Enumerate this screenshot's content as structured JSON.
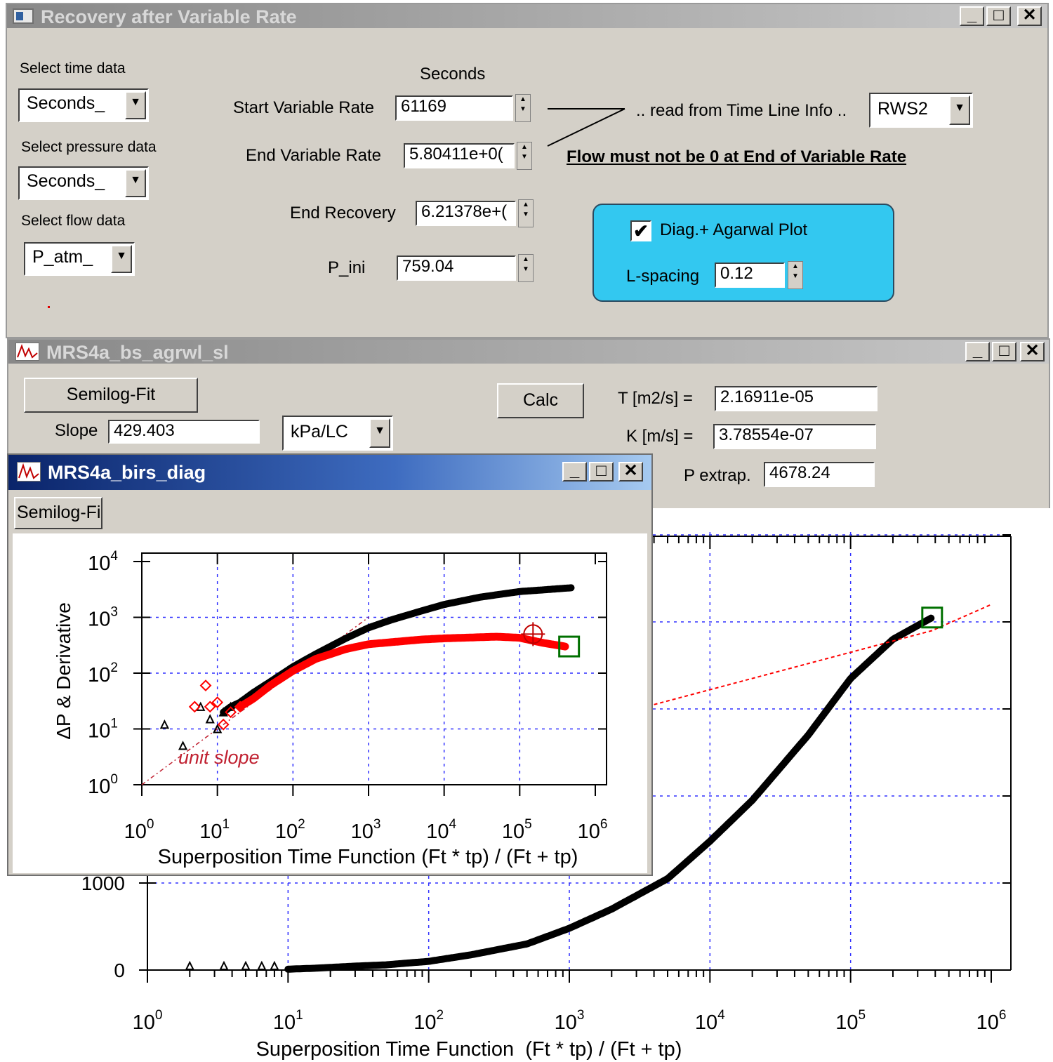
{
  "recovery_window": {
    "title": "Recovery after Variable Rate",
    "select_time_label": "Select time data",
    "select_time_value": "Seconds_",
    "select_pressure_label": "Select pressure data",
    "select_pressure_value": "Seconds_",
    "select_flow_label": "Select flow data",
    "select_flow_value": "P_atm_",
    "seconds_header": "Seconds",
    "start_variable_rate_label": "Start Variable Rate",
    "start_variable_rate_value": "61169",
    "end_variable_rate_label": "End Variable Rate",
    "end_variable_rate_value": "5.80411e+0(",
    "end_recovery_label": "End Recovery",
    "end_recovery_value": "6.21378e+(",
    "p_ini_label": "P_ini",
    "p_ini_value": "759.04",
    "read_from_label": ".. read from Time Line Info ..",
    "read_from_value": "RWS2",
    "flow_warning": "Flow must not be 0 at End of Variable Rate",
    "diag_checkbox_label": "Diag.+ Agarwal Plot",
    "diag_checked": true,
    "l_spacing_label": "L-spacing",
    "l_spacing_value": "0.12",
    "panel_color": "#33c8f0"
  },
  "agarwal_window": {
    "title": "MRS4a_bs_agrwl_sl",
    "semilog_fit_button": "Semilog-Fit",
    "slope_label": "Slope",
    "slope_value": "429.403",
    "units_value": "kPa/LC",
    "calc_button": "Calc",
    "t_label": "T [m2/s] =",
    "t_value": "2.16911e-05",
    "k_label": "K [m/s] =",
    "k_value": "3.78554e-07",
    "p_extrap_label": "P extrap.",
    "p_extrap_value": "4678.24"
  },
  "diag_window": {
    "title": "MRS4a_birs_diag",
    "semilog_fit_button": "Semilog-Fi"
  },
  "chart_data": [
    {
      "type": "scatter",
      "title": "",
      "xlabel": "Superposition Time Function  (Ft * tp) / (Ft + tp)",
      "ylabel": "",
      "xscale": "log",
      "xlim": [
        1,
        1000000
      ],
      "x_tick_labels": [
        "10",
        "10",
        "10",
        "10",
        "10",
        "10",
        "10"
      ],
      "x_tick_exponents": [
        "0",
        "1",
        "2",
        "3",
        "4",
        "5",
        "6"
      ],
      "y_tick_labels": [
        "0",
        "1000"
      ],
      "grid": true,
      "series": [
        {
          "name": "",
          "color": "#000000",
          "marker": "triangle",
          "x": [
            2,
            3.5,
            5,
            6.5,
            8,
            10,
            15,
            20,
            30,
            50,
            100,
            200,
            500,
            1000,
            2000,
            5000,
            10000,
            20000,
            50000,
            100000,
            200000,
            380000
          ],
          "y": [
            0,
            0,
            0,
            0,
            0,
            10,
            20,
            30,
            45,
            60,
            100,
            175,
            300,
            480,
            700,
            1050,
            1480,
            1950,
            2700,
            3350,
            3800,
            4050
          ]
        },
        {
          "name": "",
          "color": "#ff0000",
          "marker": "dashed-line",
          "x": [
            4000,
            380000,
            1000000
          ],
          "y": [
            3050,
            3900,
            4200
          ]
        }
      ],
      "end_marker": {
        "x": 380000,
        "y": 4050,
        "color": "#007000",
        "marker": "square"
      }
    },
    {
      "type": "scatter",
      "title": "",
      "xlabel": "Superposition Time Function (Ft * tp) / (Ft + tp)",
      "ylabel": "ΔP & Derivative",
      "xscale": "log",
      "yscale": "log",
      "xlim": [
        1,
        1000000
      ],
      "ylim": [
        1,
        10000
      ],
      "x_tick_labels": [
        "10",
        "10",
        "10",
        "10",
        "10",
        "10",
        "10"
      ],
      "x_tick_exponents": [
        "0",
        "1",
        "2",
        "3",
        "4",
        "5",
        "6"
      ],
      "y_tick_labels": [
        "10",
        "10",
        "10",
        "10",
        "10"
      ],
      "y_tick_exponents": [
        "0",
        "1",
        "2",
        "3",
        "4"
      ],
      "annotation": "unit slope",
      "grid": true,
      "series": [
        {
          "name": "",
          "color": "#000000",
          "marker": "triangle",
          "x": [
            2,
            3.5,
            6,
            8,
            10,
            12,
            15,
            20,
            30,
            50,
            100,
            200,
            500,
            1000,
            2000,
            5000,
            10000,
            30000,
            100000,
            200000,
            500000
          ],
          "y": [
            12,
            5,
            25,
            15,
            10,
            20,
            25,
            30,
            45,
            70,
            130,
            220,
            420,
            650,
            900,
            1300,
            1700,
            2300,
            2900,
            3100,
            3400
          ]
        },
        {
          "name": "",
          "color": "#ff0000",
          "marker": "diamond",
          "x": [
            5,
            7,
            8,
            10,
            12,
            15,
            20,
            30,
            50,
            100,
            200,
            500,
            1000,
            5000,
            10000,
            50000,
            100000,
            200000,
            400000
          ],
          "y": [
            25,
            60,
            25,
            30,
            12,
            20,
            25,
            35,
            60,
            110,
            180,
            270,
            330,
            400,
            420,
            450,
            430,
            350,
            300
          ]
        }
      ],
      "markers": [
        {
          "x": 150000,
          "y": 500,
          "color": "#c00000",
          "marker": "crosshair-circle"
        },
        {
          "x": 450000,
          "y": 300,
          "color": "#007000",
          "marker": "square"
        }
      ]
    }
  ]
}
